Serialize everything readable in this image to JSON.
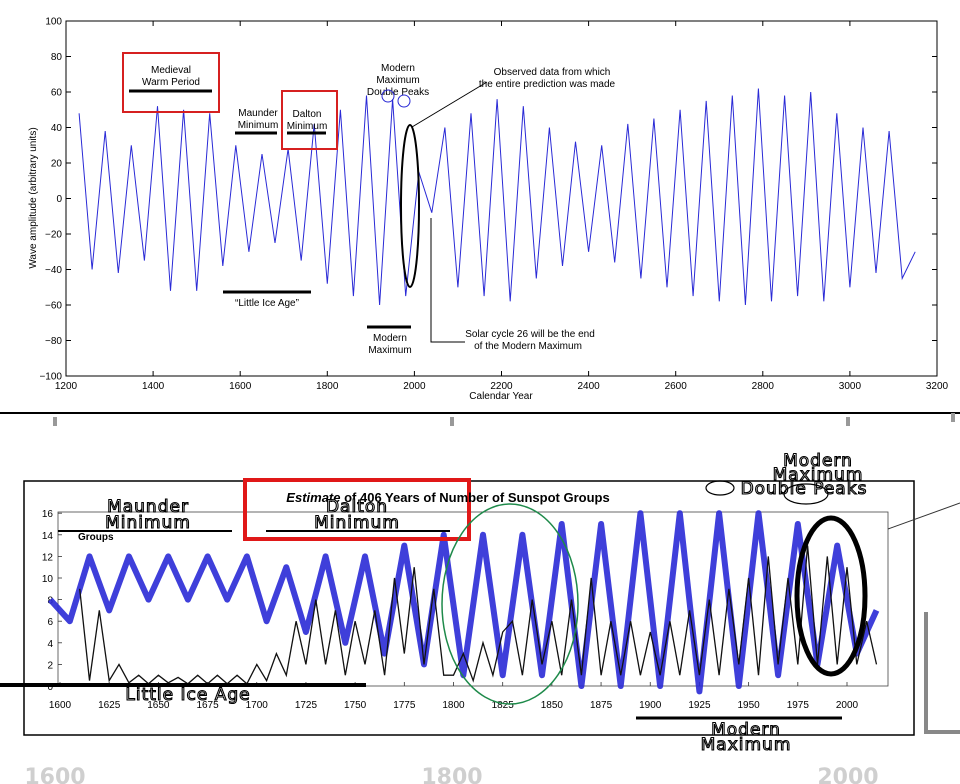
{
  "chart_data": [
    {
      "type": "line",
      "ylabel": "Wave amplitude (arbitrary units)",
      "xlabel": "Calendar Year",
      "xlim": [
        1200,
        3200
      ],
      "ylim": [
        -100,
        100
      ],
      "xticks": [
        "1200",
        "1400",
        "1600",
        "1800",
        "2000",
        "2200",
        "2400",
        "2600",
        "2800",
        "3000",
        "3200"
      ],
      "yticks": [
        "100",
        "80",
        "60",
        "40",
        "20",
        "0",
        "−20",
        "−40",
        "−60",
        "−80",
        "−100"
      ],
      "series_color": "#2a2ad6",
      "series": [
        {
          "x": [
            1230,
            1260,
            1290,
            1320,
            1350,
            1380,
            1410,
            1440,
            1470,
            1500,
            1530,
            1560,
            1590,
            1620,
            1650,
            1680,
            1710,
            1740,
            1770,
            1800,
            1830,
            1860,
            1890,
            1920,
            1950,
            1980,
            2010,
            2040,
            2070,
            2100,
            2130,
            2160,
            2190,
            2220,
            2250,
            2280,
            2310,
            2340,
            2370,
            2400,
            2430,
            2460,
            2490,
            2520,
            2550,
            2580,
            2610,
            2640,
            2670,
            2700,
            2730,
            2760,
            2790,
            2820,
            2850,
            2880,
            2910,
            2940,
            2970,
            3000,
            3030,
            3060,
            3090,
            3120,
            3150
          ],
          "y": [
            48,
            -40,
            38,
            -42,
            30,
            -35,
            52,
            -52,
            50,
            -52,
            48,
            -38,
            30,
            -30,
            25,
            -25,
            28,
            -35,
            42,
            -48,
            50,
            -55,
            58,
            -60,
            56,
            -55,
            15,
            -8,
            40,
            -50,
            48,
            -55,
            56,
            -58,
            52,
            -45,
            40,
            -38,
            32,
            -30,
            30,
            -36,
            42,
            -45,
            45,
            -50,
            50,
            -55,
            55,
            -58,
            58,
            -60,
            62,
            -58,
            58,
            -55,
            60,
            -58,
            48,
            -50,
            40,
            -42,
            38,
            -45,
            -30
          ]
        }
      ],
      "annotations": {
        "medieval": [
          "Medieval",
          "Warm Period"
        ],
        "maunder": [
          "Maunder",
          "Minimum"
        ],
        "dalton": [
          "Dalton",
          "Minimum"
        ],
        "little_ice_age": "“Little Ice Age”",
        "modern_double": [
          "Modern",
          "Maximum",
          "Double Peaks"
        ],
        "observed": [
          "Observed data from which",
          "the entire prediction was made"
        ],
        "modern_max": [
          "Modern",
          "Maximum"
        ],
        "solar_cycle": [
          "Solar cycle 26 will be the end",
          "of the Modern Maximum"
        ]
      }
    },
    {
      "type": "line",
      "title_em": "Estimate",
      "title_rest": " of 406 Years of Number of Sunspot Groups",
      "ylabel": "Groups",
      "xlim": [
        1595,
        2020
      ],
      "ylim": [
        0,
        16
      ],
      "xticks": [
        "1600",
        "1625",
        "1650",
        "1675",
        "1700",
        "1725",
        "1750",
        "1775",
        "1800",
        "1825",
        "1850",
        "1875",
        "1900",
        "1925",
        "1950",
        "1975",
        "2000"
      ],
      "yticks": [
        "16",
        "14",
        "12",
        "10",
        "8",
        "6",
        "4",
        "2",
        "0"
      ],
      "big_year_labels": [
        "1600",
        "1800",
        "2000"
      ],
      "series": [
        {
          "name": "sunspot-groups",
          "color": "#111111",
          "x": [
            1610,
            1615,
            1620,
            1625,
            1630,
            1635,
            1640,
            1645,
            1650,
            1655,
            1660,
            1665,
            1670,
            1675,
            1680,
            1685,
            1690,
            1695,
            1700,
            1705,
            1710,
            1715,
            1720,
            1725,
            1730,
            1735,
            1740,
            1745,
            1750,
            1755,
            1760,
            1765,
            1770,
            1775,
            1780,
            1785,
            1790,
            1795,
            1800,
            1805,
            1810,
            1815,
            1820,
            1825,
            1830,
            1835,
            1840,
            1845,
            1850,
            1855,
            1860,
            1865,
            1870,
            1875,
            1880,
            1885,
            1890,
            1895,
            1900,
            1905,
            1910,
            1915,
            1920,
            1925,
            1930,
            1935,
            1940,
            1945,
            1950,
            1955,
            1960,
            1965,
            1970,
            1975,
            1980,
            1985,
            1990,
            1995,
            2000,
            2005,
            2010,
            2015
          ],
          "y": [
            9,
            0.5,
            7,
            0.5,
            2,
            0.3,
            1,
            0.2,
            1,
            0.3,
            0.8,
            0.2,
            1,
            0.2,
            1,
            0.2,
            1,
            0.2,
            2,
            0.5,
            3,
            1,
            6,
            2,
            8,
            2,
            7,
            1,
            6,
            2,
            7,
            1,
            10,
            3,
            11,
            2,
            9,
            1,
            1,
            3,
            0.5,
            4,
            1,
            5,
            6,
            1,
            8,
            2,
            6,
            1,
            8,
            1,
            10,
            1,
            6,
            1,
            6,
            1,
            5,
            1,
            6,
            1,
            7,
            1,
            8,
            1,
            9,
            2,
            10,
            1,
            12,
            2,
            10,
            2,
            13,
            2,
            12,
            2,
            11,
            2,
            6,
            2
          ]
        },
        {
          "name": "wave",
          "color": "#2a2ad6",
          "x": [
            1595,
            1605,
            1615,
            1625,
            1635,
            1645,
            1655,
            1665,
            1675,
            1685,
            1695,
            1705,
            1715,
            1725,
            1735,
            1745,
            1755,
            1765,
            1775,
            1785,
            1795,
            1805,
            1815,
            1825,
            1835,
            1845,
            1855,
            1865,
            1875,
            1885,
            1895,
            1905,
            1915,
            1925,
            1935,
            1945,
            1955,
            1965,
            1975,
            1985,
            1995,
            2005,
            2015
          ],
          "y": [
            8,
            6,
            12,
            7,
            12,
            8,
            12,
            8,
            12,
            8,
            12,
            6,
            11,
            5,
            12,
            4,
            12,
            3,
            13,
            2,
            14,
            1,
            14,
            1,
            14,
            1,
            15,
            0,
            15,
            0,
            16,
            0,
            16,
            -0.5,
            16,
            0,
            16,
            1,
            15,
            2,
            13,
            3,
            7
          ]
        }
      ],
      "annotations": {
        "maunder": [
          "Maunder",
          "Minimum"
        ],
        "dalton": [
          "Dalton",
          "Minimum"
        ],
        "modern_double": [
          "Modern",
          "Maximum",
          "Double Peaks"
        ],
        "little_ice_age": "Little Ice Age",
        "modern_max": [
          "Modern",
          "Maximum"
        ]
      }
    }
  ]
}
